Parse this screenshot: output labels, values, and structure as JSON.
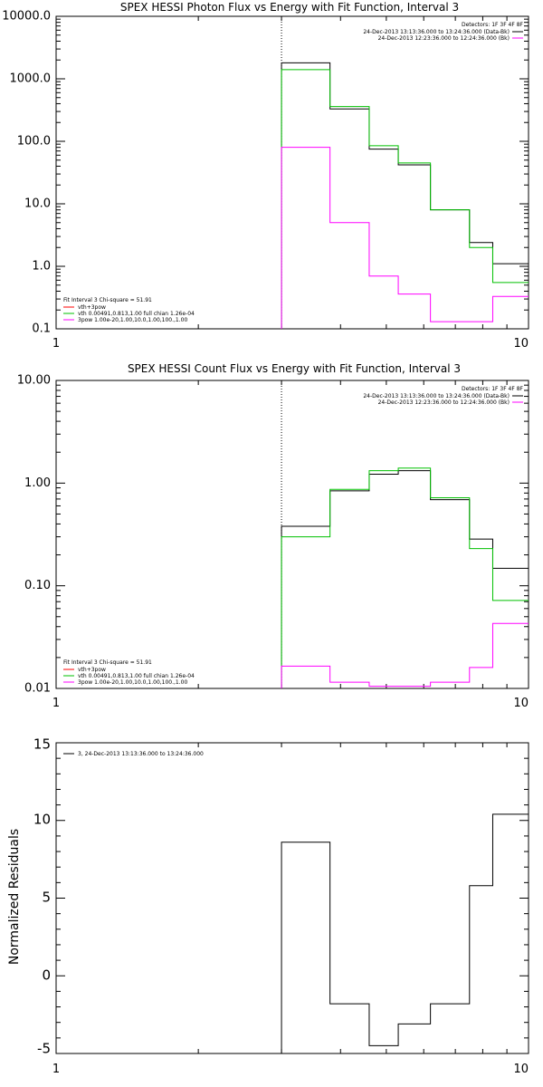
{
  "chart_data": [
    {
      "type": "line",
      "title": "SPEX HESSI Photon Flux vs Energy with Fit Function, Interval 3",
      "xlabel": "",
      "ylabel": "",
      "xscale": "log",
      "yscale": "log",
      "xlim": [
        1,
        10
      ],
      "ylim": [
        0.1,
        10000
      ],
      "x_ticks": [
        {
          "value": 1,
          "label": "1"
        },
        {
          "value": 10,
          "label": "10"
        }
      ],
      "y_ticks": [
        {
          "value": 0.1,
          "label": "0.1"
        },
        {
          "value": 1,
          "label": "1.0"
        },
        {
          "value": 10,
          "label": "10.0"
        },
        {
          "value": 100,
          "label": "100.0"
        },
        {
          "value": 1000,
          "label": "1000.0"
        },
        {
          "value": 10000,
          "label": "10000.0"
        }
      ],
      "vline": 3.0,
      "edges": [
        3.0,
        3.8,
        4.6,
        5.3,
        6.2,
        7.5,
        8.4,
        10.0
      ],
      "series": [
        {
          "name": "",
          "color": "#000000",
          "values": [
            1800,
            330,
            75,
            42,
            8,
            2.4,
            1.1
          ]
        },
        {
          "name": "vth",
          "color": "#00c000",
          "values": [
            1400,
            360,
            85,
            45,
            8,
            2.0,
            0.55
          ]
        },
        {
          "name": "3pow",
          "color": "#ff00ff",
          "values": [
            80,
            5,
            0.7,
            0.36,
            0.13,
            0.13,
            0.33
          ]
        }
      ],
      "legend_top": {
        "header": "Detectors: 1F 3F 4F 8F",
        "items": [
          {
            "label": "24-Dec-2013 13:13:36.000 to 13:24:36.000 (Data-Bk)",
            "color": "#000000"
          },
          {
            "label": "24-Dec-2013 12:23:36.000 to 12:24:36.000 (Bk)",
            "color": "#ff00ff"
          }
        ]
      },
      "legend_bottom": {
        "header": "Fit Interval 3   Chi-square = 51.91",
        "items": [
          {
            "label": "vth+3pow",
            "color": "#ff0000"
          },
          {
            "label": "vth 0.00491,0.813,1.00  full chian 1.26e-04",
            "color": "#00c000"
          },
          {
            "label": "3pow 1.00e-20,1.00,10.0,1.00,100.,1.00",
            "color": "#ff00ff"
          }
        ]
      }
    },
    {
      "type": "line",
      "title": "SPEX HESSI Count Flux vs Energy with Fit Function, Interval 3",
      "xlabel": "",
      "ylabel": "",
      "xscale": "log",
      "yscale": "log",
      "xlim": [
        1,
        10
      ],
      "ylim": [
        0.01,
        10
      ],
      "x_ticks": [
        {
          "value": 1,
          "label": "1"
        },
        {
          "value": 10,
          "label": "10"
        }
      ],
      "y_ticks": [
        {
          "value": 0.01,
          "label": "0.01"
        },
        {
          "value": 0.1,
          "label": "0.10"
        },
        {
          "value": 1,
          "label": "1.00"
        },
        {
          "value": 10,
          "label": "10.00"
        }
      ],
      "vline": 3.0,
      "edges": [
        3.0,
        3.8,
        4.6,
        5.3,
        6.2,
        7.5,
        8.4,
        10.0
      ],
      "series": [
        {
          "name": "",
          "color": "#000000",
          "values": [
            0.38,
            0.84,
            1.22,
            1.32,
            0.69,
            0.285,
            0.148
          ]
        },
        {
          "name": "vth",
          "color": "#00c000",
          "values": [
            0.3,
            0.87,
            1.32,
            1.4,
            0.72,
            0.23,
            0.072
          ]
        },
        {
          "name": "3pow",
          "color": "#ff00ff",
          "values": [
            0.0165,
            0.0115,
            0.0105,
            0.0105,
            0.0115,
            0.016,
            0.043
          ]
        }
      ],
      "legend_top": {
        "header": "Detectors: 1F 3F 4F 8F",
        "items": [
          {
            "label": "24-Dec-2013 13:13:36.000 to 13:24:36.000 (Data-Bk)",
            "color": "#000000"
          },
          {
            "label": "24-Dec-2013 12:23:36.000 to 12:24:36.000 (Bk)",
            "color": "#ff00ff"
          }
        ]
      },
      "legend_bottom": {
        "header": "Fit Interval 3   Chi-square = 51.91",
        "items": [
          {
            "label": "vth+3pow",
            "color": "#ff0000"
          },
          {
            "label": "vth 0.00491,0.813,1.00  full chian 1.26e-04",
            "color": "#00c000"
          },
          {
            "label": "3pow 1.00e-20,1.00,10.0,1.00,100.,1.00",
            "color": "#ff00ff"
          }
        ]
      }
    },
    {
      "type": "line",
      "title": "",
      "xlabel": "",
      "ylabel": "Normalized Residuals",
      "xscale": "log",
      "yscale": "linear",
      "xlim": [
        1,
        10
      ],
      "ylim": [
        -5,
        15
      ],
      "x_ticks": [
        {
          "value": 1,
          "label": "1"
        },
        {
          "value": 10,
          "label": "10"
        }
      ],
      "y_ticks": [
        {
          "value": -5,
          "label": "-5"
        },
        {
          "value": 0,
          "label": "0"
        },
        {
          "value": 5,
          "label": "5"
        },
        {
          "value": 10,
          "label": "10"
        },
        {
          "value": 15,
          "label": "15"
        }
      ],
      "edges": [
        3.0,
        3.8,
        4.6,
        5.3,
        6.2,
        7.5,
        8.4,
        10.0
      ],
      "series": [
        {
          "name": "",
          "color": "#000000",
          "values": [
            8.6,
            -1.8,
            -4.5,
            -3.1,
            -1.8,
            5.8,
            10.4
          ]
        }
      ],
      "legend_top": {
        "header": "",
        "items": [
          {
            "label": "3, 24-Dec-2013 13:13:36.000 to 13:24:36.000",
            "color": "#000000"
          }
        ]
      }
    }
  ]
}
